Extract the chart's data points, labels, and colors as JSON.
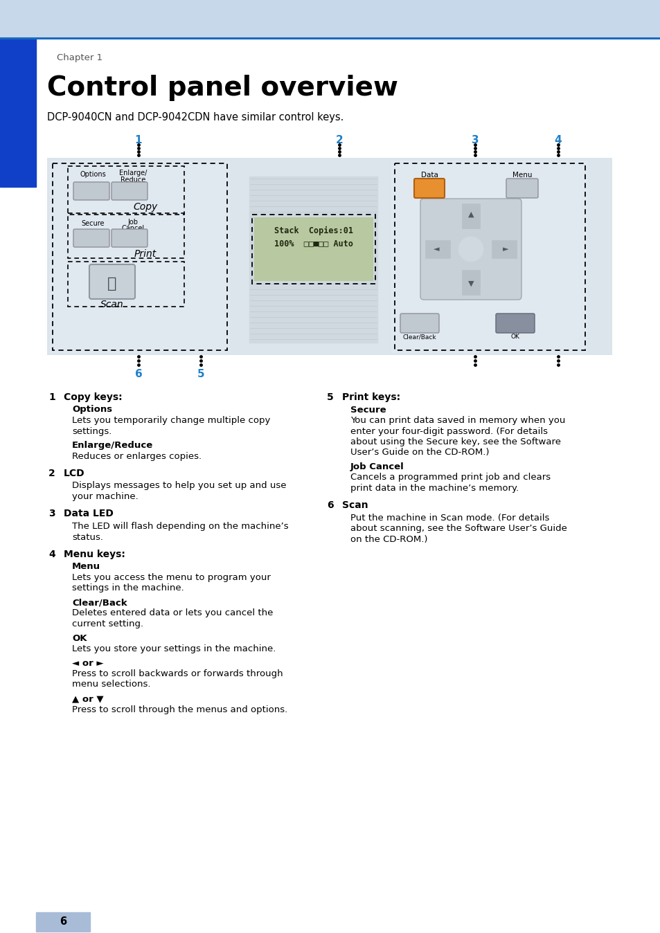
{
  "title": "Control panel overview",
  "chapter": "Chapter 1",
  "subtitle": "DCP-9040CN and DCP-9042CDN have similar control keys.",
  "page_number": "6",
  "header_bg": "#c8d8eb",
  "header_line": "#1a6bbf",
  "left_bar_color": "#1040c8",
  "side_tab_color": "#a8bcd8",
  "number_color": "#2080c8",
  "body_text_color": "#000000",
  "items_left": [
    {
      "num": "1",
      "header": "Copy keys:",
      "sub_items": [
        {
          "bold": "Options",
          "text": "Lets you temporarily change multiple copy\nsettings."
        },
        {
          "bold": "Enlarge/Reduce",
          "text": "Reduces or enlarges copies."
        }
      ]
    },
    {
      "num": "2",
      "header": "LCD",
      "text": "Displays messages to help you set up and use\nyour machine."
    },
    {
      "num": "3",
      "header": "Data LED",
      "text": "The LED will flash depending on the machine’s\nstatus."
    },
    {
      "num": "4",
      "header": "Menu keys:",
      "sub_items": [
        {
          "bold": "Menu",
          "text": "Lets you access the menu to program your\nsettings in the machine."
        },
        {
          "bold": "Clear/Back",
          "text": "Deletes entered data or lets you cancel the\ncurrent setting."
        },
        {
          "bold": "OK",
          "text": "Lets you store your settings in the machine."
        },
        {
          "bold": "◄ or ►",
          "text": "Press to scroll backwards or forwards through\nmenu selections."
        },
        {
          "bold": "▲ or ▼",
          "text": "Press to scroll through the menus and options."
        }
      ]
    }
  ],
  "items_right": [
    {
      "num": "5",
      "header": "Print keys:",
      "sub_items": [
        {
          "bold": "Secure",
          "text": "You can print data saved in memory when you\nenter your four-digit password. (For details\nabout using the Secure key, see the Software\nUser’s Guide on the CD-ROM.)"
        },
        {
          "bold": "Job Cancel",
          "text": "Cancels a programmed print job and clears\nprint data in the machine’s memory."
        }
      ]
    },
    {
      "num": "6",
      "header": "Scan",
      "text": "Put the machine in Scan mode. (For details\nabout scanning, see the Software User’s Guide\non the CD-ROM.)"
    }
  ]
}
